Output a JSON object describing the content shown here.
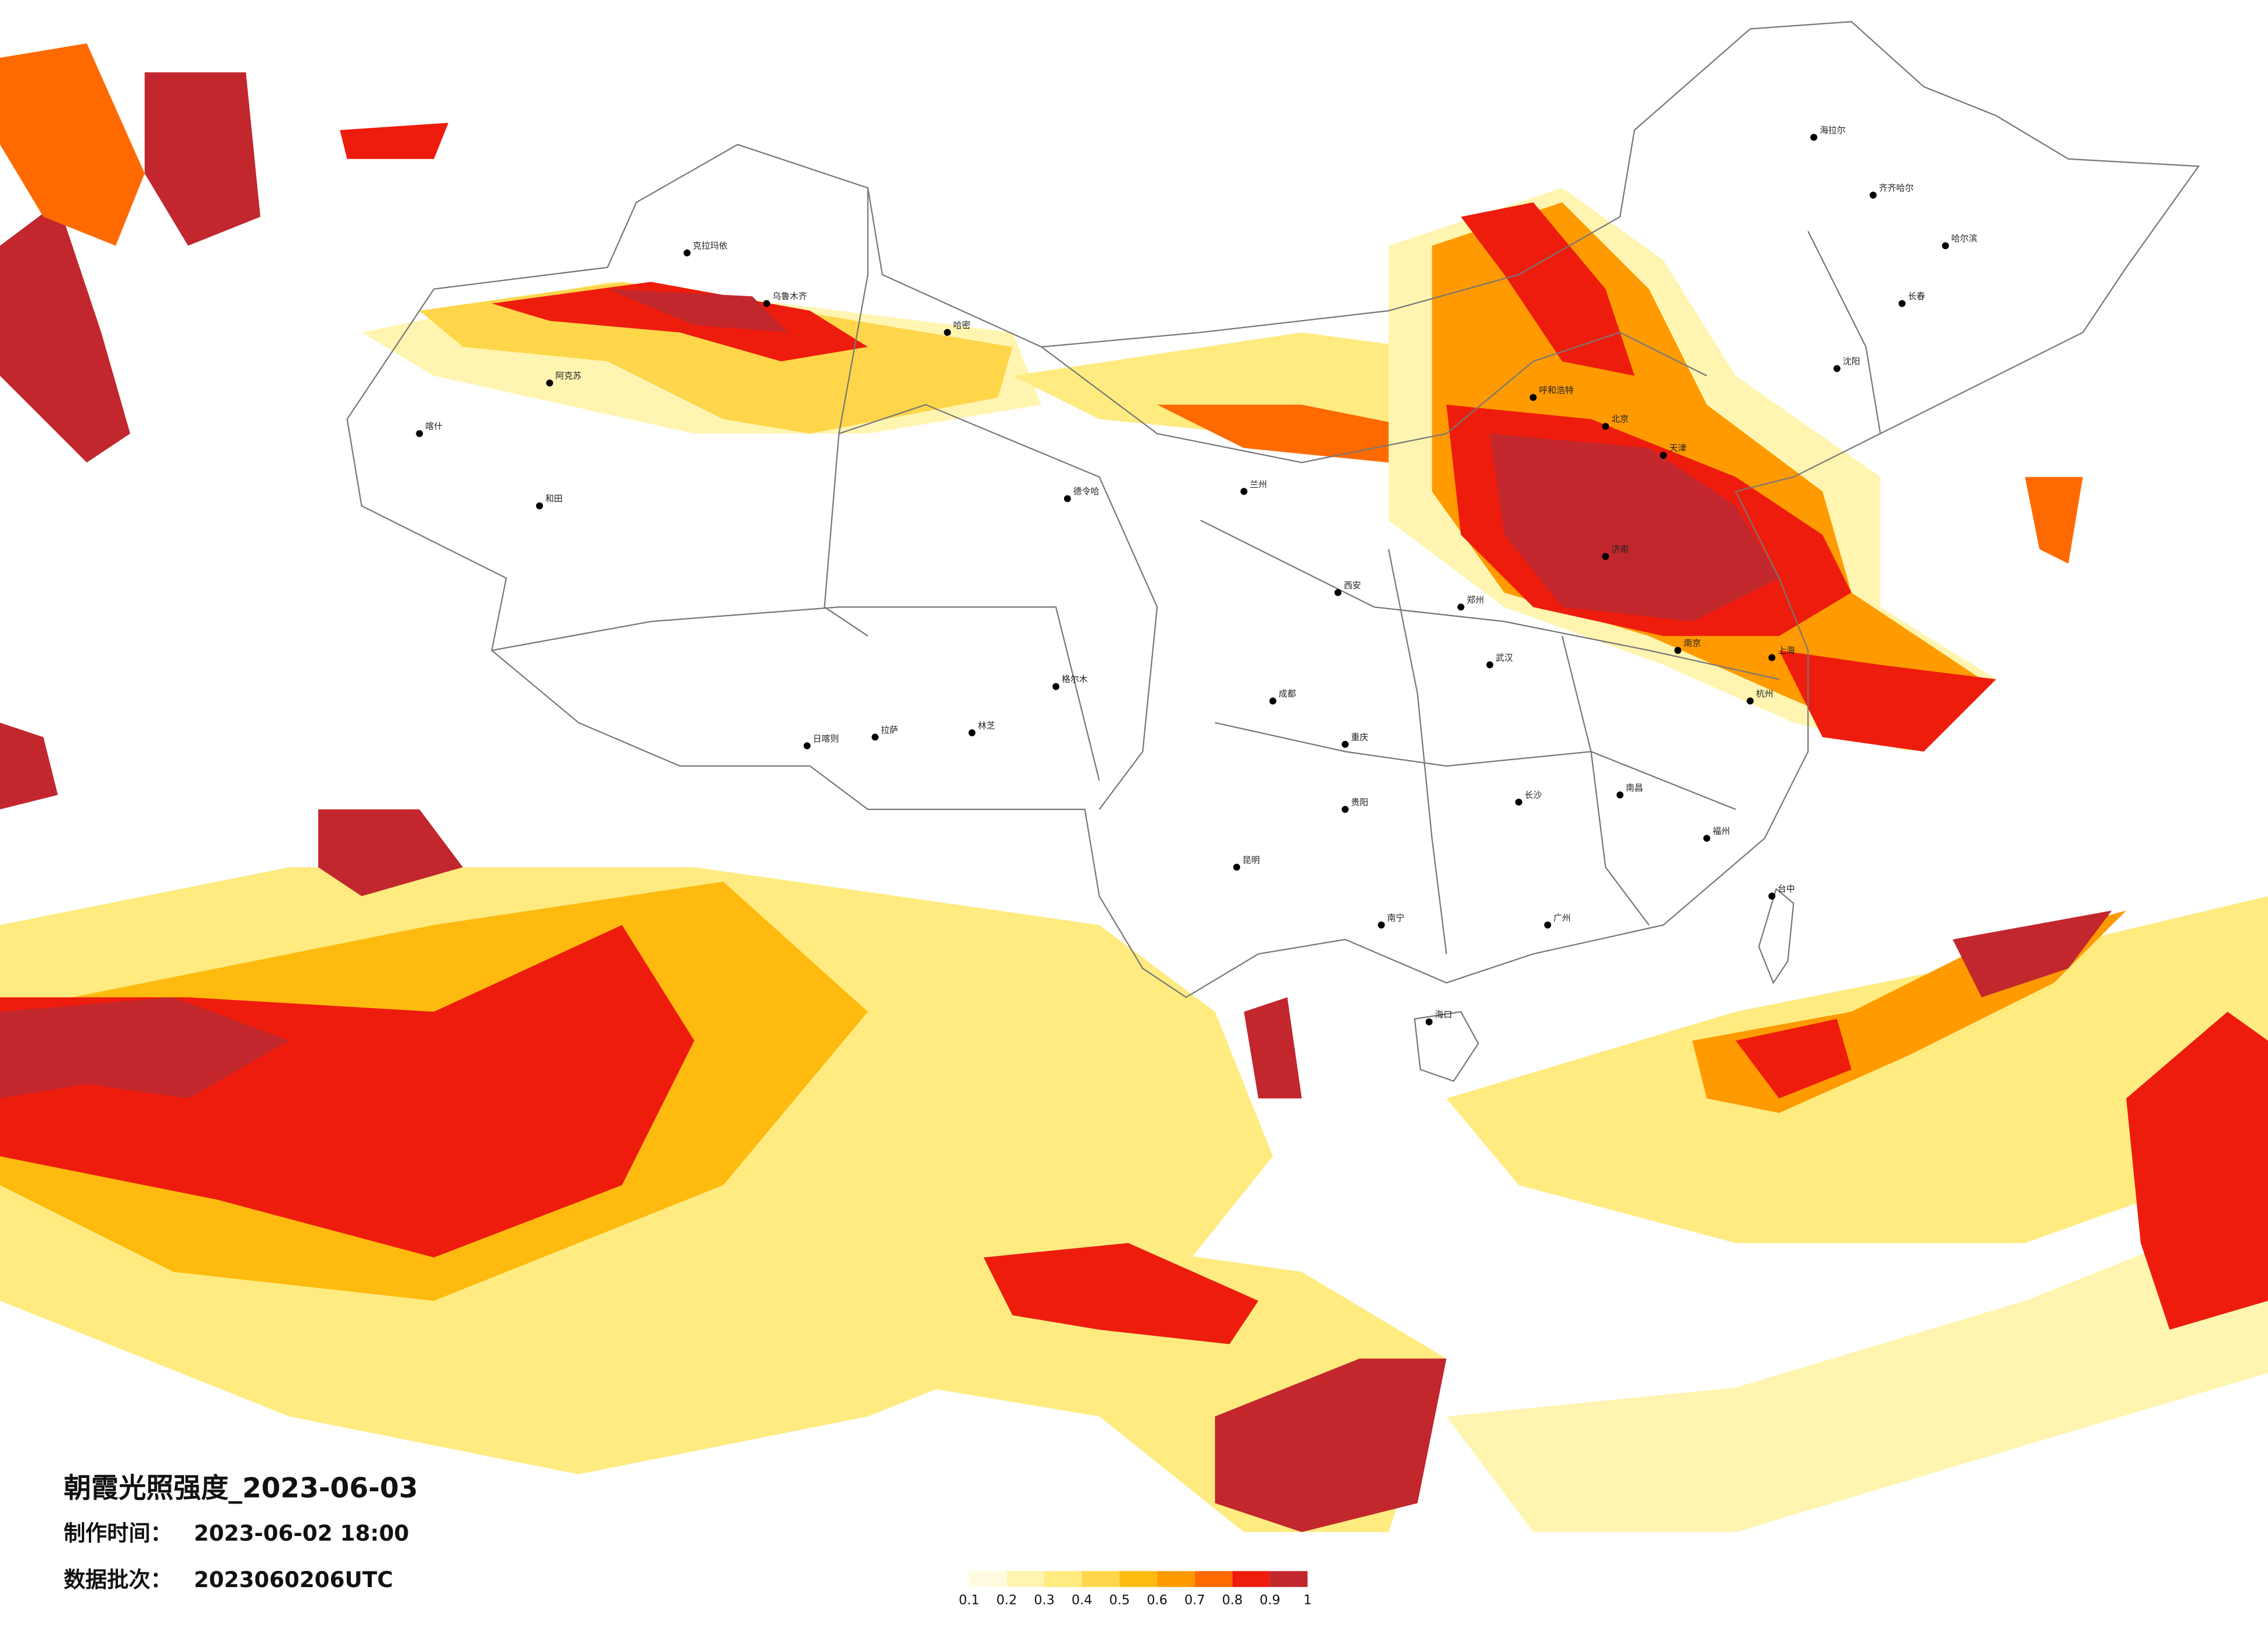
{
  "title": "朝霞光照强度_2023-06-03",
  "production_time": {
    "label": "制作时间：",
    "value": "2023-06-02 18:00"
  },
  "data_batch": {
    "label": "数据批次：",
    "value": "2023060206UTC"
  },
  "legend": {
    "colors": [
      "#fffbe0",
      "#fff5b0",
      "#ffeb80",
      "#ffd64a",
      "#ffba10",
      "#ff9a00",
      "#ff6a00",
      "#ee1c0c",
      "#c1272d"
    ],
    "ticks": [
      0.1,
      0.2,
      0.3,
      0.4,
      0.5,
      0.6,
      0.7,
      0.8,
      0.9,
      1
    ]
  },
  "cities": [
    "克拉玛依",
    "乌鲁木齐",
    "阿克苏",
    "喀什",
    "和田",
    "哈密",
    "德令哈",
    "格尔木",
    "拉萨",
    "日喀则",
    "林芝",
    "海拉尔",
    "齐齐哈尔",
    "哈尔滨",
    "长春",
    "沈阳",
    "呼和浩特",
    "北京",
    "天津",
    "济南",
    "郑州",
    "西安",
    "兰州",
    "成都",
    "重庆",
    "贵阳",
    "昆明",
    "南宁",
    "广州",
    "长沙",
    "武汉",
    "南京",
    "上海",
    "杭州",
    "福州",
    "南昌",
    "台中",
    "海口"
  ]
}
